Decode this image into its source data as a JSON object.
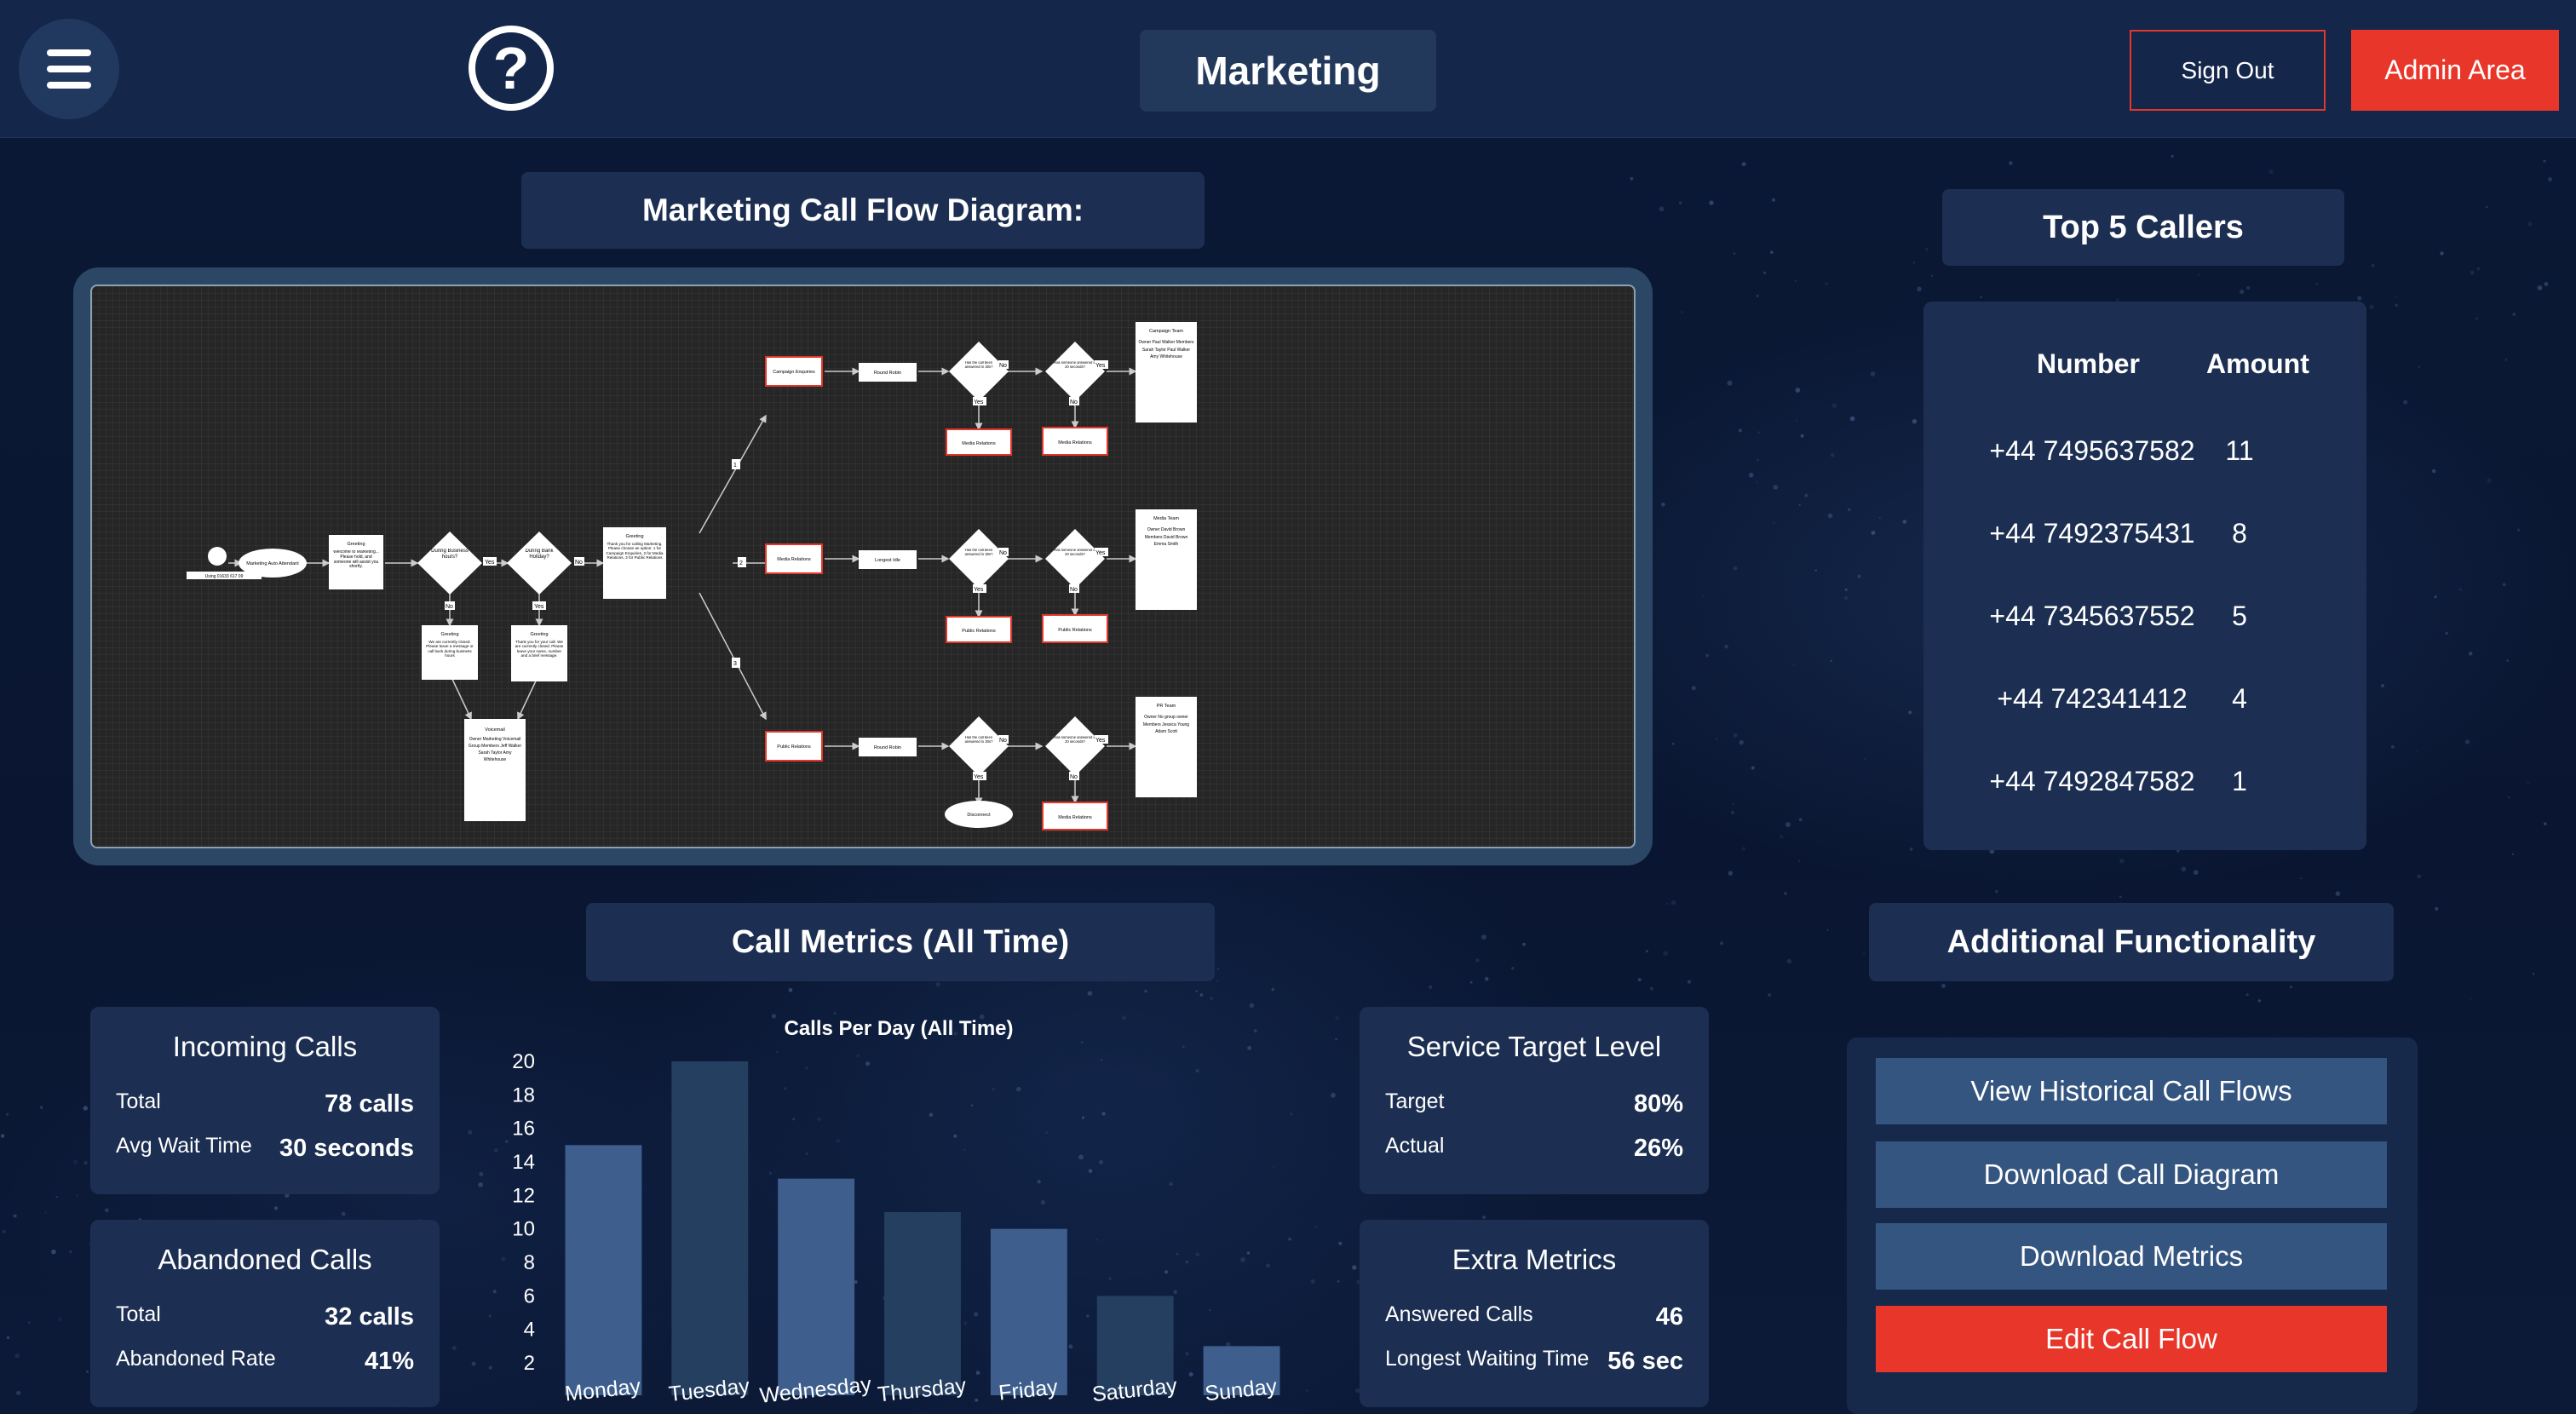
{
  "header": {
    "title": "Marketing",
    "help_glyph": "?",
    "sign_out_label": "Sign Out",
    "admin_label": "Admin Area"
  },
  "diagram": {
    "title": "Marketing Call Flow Diagram:",
    "nodes": {
      "start_label": "Using 01633 617 09",
      "auto_attendant": "Marketing Auto Attendant",
      "greeting1": "Greeting",
      "greeting1_text": "Welcome to Marketing... Please hold, and someone will assist you shortly.",
      "business_hours": "During Business hours?",
      "bank_holiday": "During Bank Holiday?",
      "greeting_menu": "Greeting",
      "greeting_menu_text": "Thank you for calling Marketing. Please choose an option: 1 for Campaign Enquiries, 2 for Media Relations, 3 for Public Relations",
      "greeting_closed": "Greeting",
      "greeting_closed_text": "We are currently closed. Please leave a message or call back during business hours",
      "greeting_holiday": "Greeting",
      "greeting_holiday_text": "Thank you for your call. We are currently closed. Please leave your name, number and a brief message.",
      "voicemail": "Voicemail",
      "voicemail_text": "Owner Marketing Voicemail Group Members Jeff Walker Sarah Taylor Amy Whitehouse",
      "campaign_enquiries": "Campaign Enquiries",
      "media_relations": "Media Relations",
      "public_relations": "Public Relations",
      "round_robin": "Round Robin",
      "longest_idle": "Longest Idle",
      "answered_q": "Has the call been answered in 30s?",
      "answer_q": "Has someone answered in 20 seconds?",
      "media_relations_box": "Media Relations",
      "public_relations_box": "Public Relations",
      "disconnect": "Disconnect",
      "campaign_team": "Campaign Team",
      "campaign_team_text": "Owner Paul Walker Members Sarah Taylor Paul Walker Amy Whitehouse",
      "media_team": "Media Team",
      "media_team_text": "Owner David Brown Members David Brown Emma Smith",
      "pr_team": "PR Team",
      "pr_team_text": "Owner No group owner Members Jessica Young Adam Scott",
      "yes": "Yes",
      "no": "No",
      "opt1": "1",
      "opt2": "2",
      "opt3": "3"
    }
  },
  "top_callers": {
    "title": "Top 5 Callers",
    "col_number": "Number",
    "col_amount": "Amount",
    "rows": [
      {
        "number": "+44 7495637582",
        "amount": "11"
      },
      {
        "number": "+44 7492375431",
        "amount": "8"
      },
      {
        "number": "+44 7345637552",
        "amount": "5"
      },
      {
        "number": "+44 742341412",
        "amount": "4"
      },
      {
        "number": "+44 7492847582",
        "amount": "1"
      }
    ]
  },
  "metrics": {
    "title": "Call Metrics (All Time)",
    "incoming": {
      "title": "Incoming Calls",
      "total_label": "Total",
      "total_value": "78 calls",
      "wait_label": "Avg Wait Time",
      "wait_value": "30 seconds"
    },
    "abandoned": {
      "title": "Abandoned Calls",
      "total_label": "Total",
      "total_value": "32 calls",
      "rate_label": "Abandoned Rate",
      "rate_value": "41%"
    },
    "service": {
      "title": "Service Target Level",
      "target_label": "Target",
      "target_value": "80%",
      "actual_label": "Actual",
      "actual_value": "26%"
    },
    "extra": {
      "title": "Extra Metrics",
      "answered_label": "Answered Calls",
      "answered_value": "46",
      "longest_label": "Longest Waiting Time",
      "longest_value": "56 sec"
    }
  },
  "chart_data": {
    "type": "bar",
    "title": "Calls Per Day (All Time)",
    "xlabel": "",
    "ylabel": "",
    "categories": [
      "Monday",
      "Tuesday",
      "Wednesday",
      "Thursday",
      "Friday",
      "Saturday",
      "Sunday"
    ],
    "values": [
      15,
      20,
      13,
      11,
      10,
      6,
      3
    ],
    "ylim": [
      2,
      20
    ],
    "yticks": [
      2,
      4,
      6,
      8,
      10,
      12,
      14,
      16,
      18,
      20
    ],
    "bar_colors": [
      "#3e5f8d",
      "#243f60",
      "#3e5f8d",
      "#243f60",
      "#3e5f8d",
      "#243f60",
      "#3e5f8d"
    ],
    "grid": false
  },
  "additional": {
    "title": "Additional Functionality",
    "view_history": "View Historical Call Flows",
    "download_diagram": "Download Call Diagram",
    "download_metrics": "Download Metrics",
    "edit_flow": "Edit Call Flow"
  },
  "colors": {
    "accent_red": "#e8372a",
    "panel": "#1c2f52",
    "button_blue": "#34557f"
  },
  "icons": {
    "menu": "hamburger-menu-icon",
    "help": "question-mark-circle-icon"
  }
}
